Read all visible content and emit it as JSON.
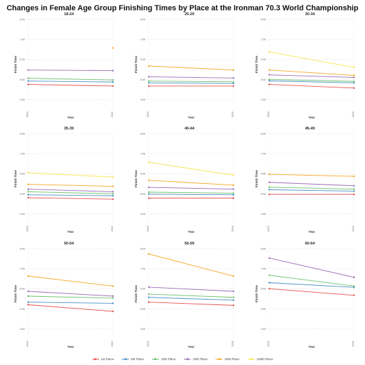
{
  "title": "Changes in Female Age Group Finishing Times by Place at the Ironman 70.3 World Championship",
  "chart_data": {
    "type": "line",
    "xlabel": "Year",
    "ylabel": "Finish Time",
    "x_ticks": [
      "2015",
      "2016"
    ],
    "y_ticks": [
      "4:00",
      "5:00",
      "6:00",
      "7:00",
      "8:00"
    ],
    "ylim": [
      3.5,
      8.0
    ],
    "grid": true,
    "legend_position": "bottom",
    "series_colors": [
      "#e8504f",
      "#4a90c8",
      "#6abf6a",
      "#9b6bb5",
      "#f5a623",
      "#f5e64a"
    ],
    "legend": [
      "1st Place",
      "5th Place",
      "10th Place",
      "20th Place",
      "50th Place",
      "100th Place"
    ],
    "panels": [
      {
        "title": "18-24",
        "series": [
          [
            4.75,
            4.67
          ],
          [
            4.92,
            4.87
          ],
          [
            5.06,
            4.97
          ],
          [
            5.47,
            5.44
          ],
          [
            null,
            6.57
          ],
          [
            null,
            null
          ]
        ]
      },
      {
        "title": "25-29",
        "series": [
          [
            4.67,
            4.67
          ],
          [
            4.83,
            4.8
          ],
          [
            4.92,
            4.88
          ],
          [
            5.13,
            5.07
          ],
          [
            5.67,
            5.47
          ],
          [
            null,
            null
          ]
        ]
      },
      {
        "title": "30-34",
        "series": [
          [
            4.75,
            4.57
          ],
          [
            4.93,
            4.83
          ],
          [
            5.0,
            4.9
          ],
          [
            5.23,
            5.1
          ],
          [
            5.47,
            5.2
          ],
          [
            6.37,
            5.6
          ]
        ]
      },
      {
        "title": "35-39",
        "series": [
          [
            4.8,
            4.73
          ],
          [
            4.95,
            4.9
          ],
          [
            5.1,
            5.0
          ],
          [
            5.23,
            5.1
          ],
          [
            5.47,
            5.37
          ],
          [
            6.05,
            5.83
          ]
        ]
      },
      {
        "title": "40-44",
        "series": [
          [
            4.78,
            4.78
          ],
          [
            4.98,
            4.95
          ],
          [
            5.08,
            5.03
          ],
          [
            5.32,
            5.23
          ],
          [
            5.67,
            5.43
          ],
          [
            6.57,
            5.93
          ]
        ]
      },
      {
        "title": "45-49",
        "series": [
          [
            4.97,
            4.97
          ],
          [
            5.2,
            5.13
          ],
          [
            5.33,
            5.23
          ],
          [
            5.57,
            5.4
          ],
          [
            5.97,
            5.87
          ],
          [
            null,
            null
          ]
        ]
      },
      {
        "title": "50-54",
        "series": [
          [
            5.2,
            4.87
          ],
          [
            5.33,
            5.27
          ],
          [
            5.63,
            5.53
          ],
          [
            5.87,
            5.63
          ],
          [
            6.63,
            6.13
          ],
          [
            null,
            null
          ]
        ]
      },
      {
        "title": "55-59",
        "series": [
          [
            5.33,
            5.17
          ],
          [
            5.57,
            5.43
          ],
          [
            5.73,
            5.57
          ],
          [
            6.08,
            5.87
          ],
          [
            7.73,
            6.63
          ],
          [
            null,
            null
          ]
        ]
      },
      {
        "title": "60-64",
        "series": [
          [
            6.0,
            5.67
          ],
          [
            6.3,
            6.07
          ],
          [
            6.67,
            6.13
          ],
          [
            7.53,
            6.57
          ],
          [
            null,
            null
          ],
          [
            null,
            null
          ]
        ]
      }
    ]
  }
}
